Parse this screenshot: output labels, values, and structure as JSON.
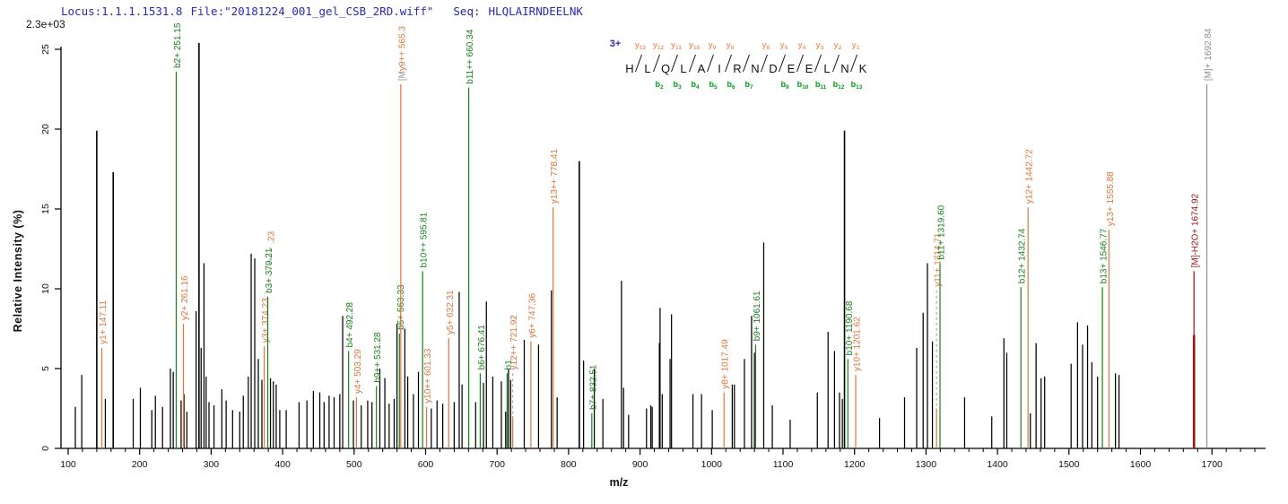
{
  "header": {
    "locus": "Locus:1.1.1.1531.8",
    "file": "File:\"20181224_001_gel_CSB_2RD.wiff\"",
    "seq_label": "Seq:",
    "sequence": "HLQLAIRNDEELNK",
    "max_intensity_label": "2.3e+03"
  },
  "colors": {
    "header_blue": "#2a2ab4",
    "y_ion": "#e0743a",
    "b_ion": "#17801a",
    "precursor_gray": "#8f8f8f",
    "precursor_red": "#a01313",
    "annotation_y": "#f09a70",
    "annotation_b": "#00a018",
    "peak_black": "#000000",
    "axis": "#000000",
    "dashed_leader": "#9a9a9a"
  },
  "chart_data": {
    "type": "bar",
    "variant": "ms2-centroid-peptide-fragmentation-spectrum",
    "xlabel": "m/z",
    "ylabel": "Relative  Intensity (%)",
    "max_intensity_label": "2.3e+03",
    "xlim": [
      100,
      1775
    ],
    "ylim": [
      0,
      25
    ],
    "x_major_ticks": [
      100,
      200,
      300,
      400,
      500,
      600,
      700,
      800,
      900,
      1000,
      1100,
      1200,
      1300,
      1400,
      1500,
      1600,
      1700
    ],
    "x_minor_step": 20,
    "y_ticks": [
      0,
      5,
      10,
      15,
      20,
      25
    ],
    "grid": false,
    "precursor_charge": "3+",
    "peptide": "HLQLAIRNDEELNK",
    "fragment_map": {
      "y_ions": [
        {
          "n": 13,
          "boundary": 1
        },
        {
          "n": 12,
          "boundary": 2
        },
        {
          "n": 11,
          "boundary": 3
        },
        {
          "n": 10,
          "boundary": 4
        },
        {
          "n": 9,
          "boundary": 5
        },
        {
          "n": 8,
          "boundary": 6
        },
        {
          "n": 6,
          "boundary": 8
        },
        {
          "n": 5,
          "boundary": 9
        },
        {
          "n": 4,
          "boundary": 10
        },
        {
          "n": 3,
          "boundary": 11
        },
        {
          "n": 2,
          "boundary": 12
        },
        {
          "n": 1,
          "boundary": 13
        }
      ],
      "b_ions": [
        {
          "n": 2,
          "boundary": 2
        },
        {
          "n": 3,
          "boundary": 3
        },
        {
          "n": 4,
          "boundary": 4
        },
        {
          "n": 5,
          "boundary": 5
        },
        {
          "n": 6,
          "boundary": 6
        },
        {
          "n": 7,
          "boundary": 7
        },
        {
          "n": 9,
          "boundary": 9
        },
        {
          "n": 10,
          "boundary": 10
        },
        {
          "n": 11,
          "boundary": 11
        },
        {
          "n": 12,
          "boundary": 12
        },
        {
          "n": 13,
          "boundary": 13
        }
      ]
    },
    "labeled_ions": [
      {
        "label": "y1+ 147.11",
        "series": "y",
        "mz": 147.11,
        "base_pct": 6.3
      },
      {
        "label": "b2+ 251.15",
        "series": "b",
        "mz": 251.15,
        "base_pct": 23.6
      },
      {
        "label": "y2+ 261.16",
        "series": "y",
        "mz": 261.16,
        "base_pct": 7.8
      },
      {
        "label": "y3+ 374.23",
        "series": "y",
        "mz": 374.23,
        "base_pct": 6.4
      },
      {
        "label": "b3+ 379.21",
        "series": "b",
        "mz": 379.21,
        "base_pct": 9.5
      },
      {
        "label": ".23",
        "series": "y",
        "mz": 382.5,
        "base_pct": 12.6,
        "dashed": true,
        "solid_from_pct": 10.2,
        "leader_only": true
      },
      {
        "label": "b4+ 492.28",
        "series": "b",
        "mz": 492.28,
        "base_pct": 6.1
      },
      {
        "label": "y4+ 503.29",
        "series": "y",
        "mz": 503.29,
        "base_pct": 3.2
      },
      {
        "label": "b9++ 531.28",
        "series": "b",
        "mz": 531.28,
        "base_pct": 3.9
      },
      {
        "label": "b5+ 563.33",
        "series": "b",
        "mz": 563.33,
        "base_pct": 7.2
      },
      {
        "label": "[My9++ 565.3",
        "series": "y",
        "mz": 565.3,
        "base_pct": 22.8,
        "prefix_gray": "[M",
        "rest": "y9++ 565.3"
      },
      {
        "label": "b10++ 595.81",
        "series": "b",
        "mz": 595.81,
        "base_pct": 11.1
      },
      {
        "label": "y10++ 601.33",
        "series": "y",
        "mz": 601.33,
        "base_pct": 2.6
      },
      {
        "label": "y5+ 632.31",
        "series": "y",
        "mz": 632.31,
        "base_pct": 6.9
      },
      {
        "label": "b11++ 660.34",
        "series": "b",
        "mz": 660.34,
        "base_pct": 22.6
      },
      {
        "label": "b6+ 676.41",
        "series": "b",
        "mz": 676.41,
        "base_pct": 4.7
      },
      {
        "label": "b1",
        "series": "b",
        "mz": 714.0,
        "base_pct": 4.7
      },
      {
        "label": "y12++ 721.92",
        "series": "y",
        "mz": 721.92,
        "base_pct": 4.7,
        "dashed": true,
        "solid_from_pct": 2.0
      },
      {
        "label": "y6+ 747.36",
        "series": "y",
        "mz": 747.36,
        "base_pct": 6.7
      },
      {
        "label": "y13++ 778.41",
        "series": "y",
        "mz": 778.41,
        "base_pct": 15.1
      },
      {
        "label": "b7+ 832.51",
        "series": "b",
        "mz": 832.51,
        "base_pct": 2.2
      },
      {
        "label": "y8+ 1017.49",
        "series": "y",
        "mz": 1017.49,
        "base_pct": 3.5
      },
      {
        "label": "b9+ 1061.61",
        "series": "b",
        "mz": 1061.61,
        "base_pct": 6.5
      },
      {
        "label": "b10+ 1190.68",
        "series": "b",
        "mz": 1190.68,
        "base_pct": 5.6
      },
      {
        "label": "y10+ 1201.62",
        "series": "y",
        "mz": 1201.62,
        "base_pct": 4.6
      },
      {
        "label": "y11+ 1314.71",
        "series": "y",
        "mz": 1314.71,
        "base_pct": 9.9,
        "dashed": true,
        "solid_from_pct": 2.5
      },
      {
        "label": "b11+ 1319.60",
        "series": "b",
        "mz": 1319.6,
        "base_pct": 11.6
      },
      {
        "label": "b12+ 1432.74",
        "series": "b",
        "mz": 1432.74,
        "base_pct": 10.1
      },
      {
        "label": "y12+ 1442.72",
        "series": "y",
        "mz": 1442.72,
        "base_pct": 15.1
      },
      {
        "label": "b13+ 1546.77",
        "series": "b",
        "mz": 1546.77,
        "base_pct": 10.1
      },
      {
        "label": "y13+ 1555.88",
        "series": "y",
        "mz": 1555.88,
        "base_pct": 13.7
      },
      {
        "label": "[M]-H2O+ 1674.92",
        "series": "M",
        "mz": 1674.92,
        "base_pct": 11.1,
        "color": "#a01313",
        "thick_from_pct": 7.1
      },
      {
        "label": "[M]+ 1692.84",
        "series": "M",
        "mz": 1692.84,
        "base_pct": 22.8,
        "color": "#8f8f8f"
      }
    ],
    "unlabeled_peaks": [
      [
        110,
        2.6
      ],
      [
        119,
        4.6
      ],
      [
        140,
        19.9
      ],
      [
        152,
        3.1
      ],
      [
        163,
        17.3
      ],
      [
        191,
        3.1
      ],
      [
        201,
        3.8
      ],
      [
        217,
        2.4
      ],
      [
        222,
        3.3
      ],
      [
        232,
        2.6
      ],
      [
        243,
        5.0
      ],
      [
        247,
        4.8
      ],
      [
        258,
        3.0
      ],
      [
        262,
        3.4
      ],
      [
        266,
        2.3
      ],
      [
        279,
        8.6
      ],
      [
        283,
        25.4
      ],
      [
        286,
        6.3
      ],
      [
        290,
        11.6
      ],
      [
        293,
        4.5
      ],
      [
        297,
        2.9
      ],
      [
        304,
        2.7
      ],
      [
        315,
        3.7
      ],
      [
        321,
        3.0
      ],
      [
        330,
        2.4
      ],
      [
        340,
        2.3
      ],
      [
        345,
        3.3
      ],
      [
        352,
        4.5
      ],
      [
        356,
        12.2
      ],
      [
        361,
        11.9
      ],
      [
        366,
        5.6
      ],
      [
        371,
        4.3
      ],
      [
        383,
        4.4
      ],
      [
        387,
        4.2
      ],
      [
        391,
        4.0
      ],
      [
        396,
        2.4
      ],
      [
        405,
        2.4
      ],
      [
        423,
        2.9
      ],
      [
        434,
        3.0
      ],
      [
        443,
        3.6
      ],
      [
        452,
        3.5
      ],
      [
        458,
        2.9
      ],
      [
        465,
        3.3
      ],
      [
        472,
        3.2
      ],
      [
        480,
        3.4
      ],
      [
        484,
        8.3
      ],
      [
        499,
        3.0
      ],
      [
        510,
        2.7
      ],
      [
        519,
        3.0
      ],
      [
        525,
        2.9
      ],
      [
        536,
        5.0
      ],
      [
        543,
        4.4
      ],
      [
        549,
        2.8
      ],
      [
        556,
        3.1
      ],
      [
        560,
        7.8
      ],
      [
        571,
        7.5
      ],
      [
        575,
        4.5
      ],
      [
        583,
        3.4
      ],
      [
        590,
        4.8
      ],
      [
        608,
        2.5
      ],
      [
        616,
        3.0
      ],
      [
        624,
        2.8
      ],
      [
        640,
        2.9
      ],
      [
        647,
        9.8
      ],
      [
        651,
        4.0
      ],
      [
        670,
        2.9
      ],
      [
        681,
        4.1
      ],
      [
        685,
        9.2
      ],
      [
        694,
        4.5
      ],
      [
        706,
        4.2
      ],
      [
        712,
        2.3
      ],
      [
        716,
        5.0
      ],
      [
        719,
        4.3
      ],
      [
        738,
        6.8
      ],
      [
        758,
        6.5
      ],
      [
        776,
        9.9
      ],
      [
        784,
        3.2
      ],
      [
        815,
        18.0
      ],
      [
        821,
        5.5
      ],
      [
        836,
        5.0
      ],
      [
        848,
        3.1
      ],
      [
        874,
        10.5
      ],
      [
        877,
        3.8
      ],
      [
        884,
        2.1
      ],
      [
        909,
        2.5
      ],
      [
        915,
        2.7
      ],
      [
        917,
        2.6
      ],
      [
        927,
        6.6
      ],
      [
        928,
        8.8
      ],
      [
        931,
        3.4
      ],
      [
        942,
        5.6
      ],
      [
        944,
        8.4
      ],
      [
        974,
        3.4
      ],
      [
        986,
        3.4
      ],
      [
        1001,
        2.4
      ],
      [
        1029,
        4.0
      ],
      [
        1032,
        4.0
      ],
      [
        1046,
        5.6
      ],
      [
        1056,
        8.3
      ],
      [
        1060,
        6.0
      ],
      [
        1073,
        12.9
      ],
      [
        1085,
        2.7
      ],
      [
        1110,
        1.8
      ],
      [
        1148,
        3.5
      ],
      [
        1163,
        7.3
      ],
      [
        1172,
        6.1
      ],
      [
        1179,
        3.5
      ],
      [
        1183,
        3.1
      ],
      [
        1186,
        19.9
      ],
      [
        1235,
        1.9
      ],
      [
        1270,
        3.2
      ],
      [
        1287,
        6.3
      ],
      [
        1296,
        8.5
      ],
      [
        1302,
        11.6
      ],
      [
        1309,
        6.7
      ],
      [
        1354,
        3.2
      ],
      [
        1392,
        2.0
      ],
      [
        1409,
        6.9
      ],
      [
        1413,
        6.0
      ],
      [
        1446,
        2.2
      ],
      [
        1454,
        6.6
      ],
      [
        1461,
        4.4
      ],
      [
        1466,
        4.5
      ],
      [
        1503,
        5.3
      ],
      [
        1512,
        7.9
      ],
      [
        1519,
        6.5
      ],
      [
        1526,
        7.7
      ],
      [
        1532,
        5.4
      ],
      [
        1540,
        4.5
      ],
      [
        1565,
        4.7
      ],
      [
        1570,
        4.6
      ]
    ]
  }
}
